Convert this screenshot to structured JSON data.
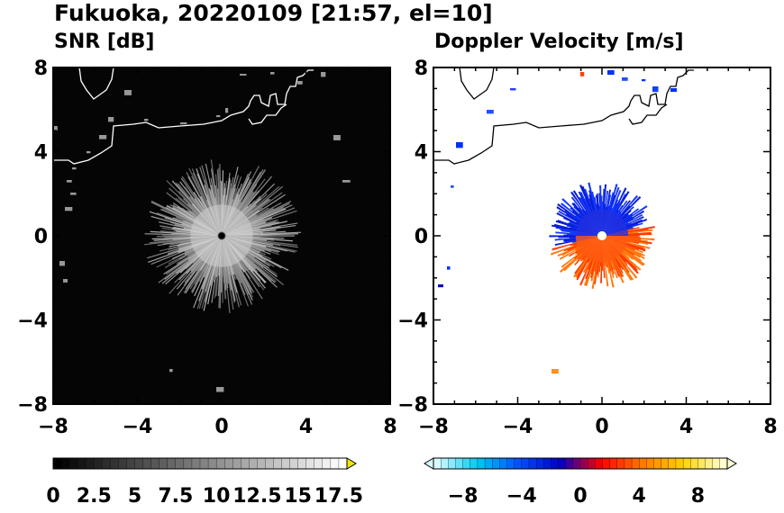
{
  "title": "Fukuoka, 20220109 [21:57, el=10]",
  "panels": {
    "left_title": "SNR [dB]",
    "right_title": "Doppler Velocity [m/s]"
  },
  "chart_data": [
    {
      "type": "heatmap",
      "title": "SNR [dB]",
      "xlim": [
        -8,
        8
      ],
      "ylim": [
        -8,
        8
      ],
      "x_ticks": [
        "−8",
        "−4",
        "0",
        "4",
        "8"
      ],
      "y_ticks": [
        "8",
        "4",
        "0",
        "−4",
        "−8"
      ],
      "colorbar": {
        "range": [
          0,
          18
        ],
        "labels": [
          "0",
          "2.5",
          "5",
          "7.5",
          "10",
          "12.5",
          "15",
          "17.5"
        ],
        "colors": [
          "#000000",
          "#ffffff"
        ],
        "over_color": "#f2e600"
      },
      "echo_radius_km": 3.3,
      "grid": false
    },
    {
      "type": "heatmap",
      "title": "Doppler Velocity [m/s]",
      "xlim": [
        -8,
        8
      ],
      "ylim": [
        -8,
        8
      ],
      "x_ticks": [
        "−8",
        "−4",
        "0",
        "4",
        "8"
      ],
      "y_ticks": [
        "8",
        "4",
        "0",
        "−4",
        "−8"
      ],
      "colorbar": {
        "range": [
          -10,
          10
        ],
        "labels": [
          "−8",
          "−4",
          "0",
          "4",
          "8"
        ],
        "colors": [
          "#d9fbff",
          "#00c8f0",
          "#0050ff",
          "#0000c8",
          "#ff0000",
          "#ff7800",
          "#ffd200",
          "#ffffd0"
        ],
        "under_color": "#d9fbff",
        "over_color": "#ffffd0"
      },
      "echo_radius_km": 2.5,
      "dominant_sectors": [
        {
          "direction": "north-west",
          "sign": "negative (toward radar)"
        },
        {
          "direction": "south-east",
          "sign": "positive (away from radar)"
        }
      ],
      "grid": false
    }
  ]
}
